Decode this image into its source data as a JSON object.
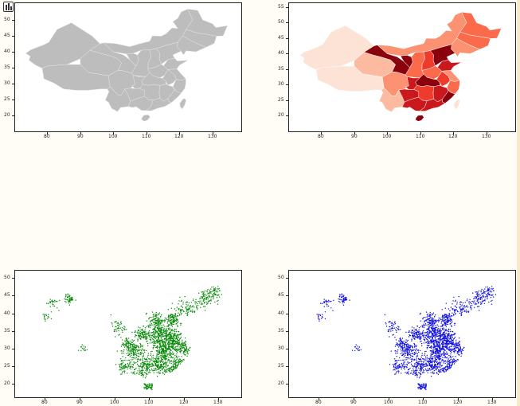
{
  "toolbar": {
    "icon": "chart-toolbar-icon"
  },
  "chart_data": [
    {
      "type": "choropleth",
      "fill": "#bdbdbd",
      "xticks": [
        "80",
        "90",
        "100",
        "110",
        "120",
        "130"
      ],
      "yticks": [
        "20",
        "25",
        "30",
        "35",
        "40",
        "45",
        "50"
      ],
      "xlim": [
        72,
        137
      ],
      "ylim": [
        16,
        54
      ]
    },
    {
      "type": "choropleth",
      "colormap": "Reds",
      "xticks": [
        "80",
        "90",
        "100",
        "110",
        "120",
        "130"
      ],
      "yticks": [
        "20",
        "25",
        "30",
        "35",
        "40",
        "45",
        "50",
        "55"
      ],
      "xlim": [
        72,
        137
      ],
      "ylim": [
        16,
        55
      ]
    },
    {
      "type": "scatter",
      "color": "#0a8a0a",
      "xticks": [
        "80",
        "90",
        "100",
        "110",
        "120",
        "130"
      ],
      "yticks": [
        "20",
        "25",
        "30",
        "35",
        "40",
        "45",
        "50"
      ],
      "xlim": [
        73,
        135
      ],
      "ylim": [
        17,
        51
      ]
    },
    {
      "type": "scatter",
      "color": "#1212e0",
      "xticks": [
        "80",
        "90",
        "100",
        "110",
        "120",
        "130"
      ],
      "yticks": [
        "20",
        "25",
        "30",
        "35",
        "40",
        "45",
        "50"
      ],
      "xlim": [
        73,
        135
      ],
      "ylim": [
        17,
        51
      ]
    }
  ]
}
